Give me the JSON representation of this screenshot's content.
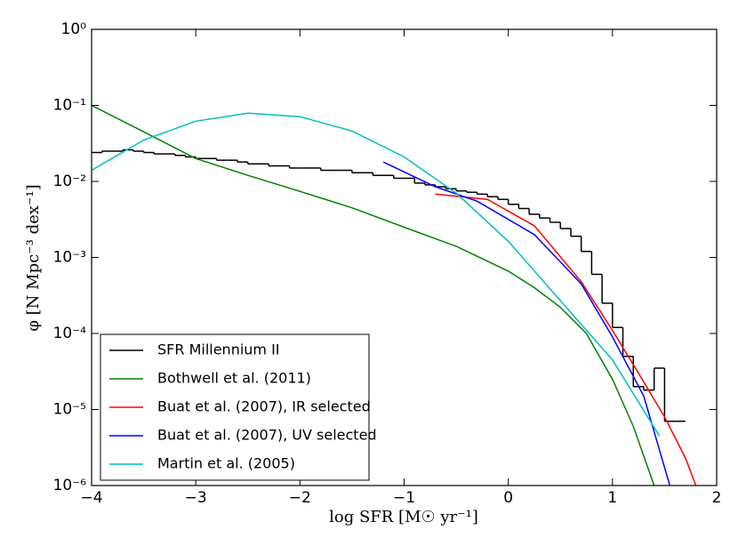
{
  "chart_data": {
    "type": "line",
    "xlabel": "log SFR [M☉ yr⁻¹]",
    "ylabel": "φ [N Mpc⁻³ dex⁻¹]",
    "xlim": [
      -4,
      2
    ],
    "xticks": [
      -4,
      -3,
      -2,
      -1,
      0,
      1,
      2
    ],
    "ylim": [
      1e-06,
      1
    ],
    "log_y": true,
    "yticks": [
      {
        "value": 1e-06,
        "label": "10⁻⁶"
      },
      {
        "value": 1e-05,
        "label": "10⁻⁵"
      },
      {
        "value": 0.0001,
        "label": "10⁻⁴"
      },
      {
        "value": 0.001,
        "label": "10⁻³"
      },
      {
        "value": 0.01,
        "label": "10⁻²"
      },
      {
        "value": 0.1,
        "label": "10⁻¹"
      },
      {
        "value": 1,
        "label": "10⁰"
      }
    ],
    "legend": "lower left",
    "series": [
      {
        "name": "SFR Millennium II",
        "color": "#000000",
        "drawstyle": "steps-mid",
        "x": [
          -3.95,
          -3.85,
          -3.75,
          -3.65,
          -3.55,
          -3.45,
          -3.35,
          -3.25,
          -3.15,
          -3.05,
          -2.95,
          -2.85,
          -2.75,
          -2.65,
          -2.55,
          -2.45,
          -2.35,
          -2.25,
          -2.15,
          -2.05,
          -1.95,
          -1.85,
          -1.75,
          -1.65,
          -1.55,
          -1.45,
          -1.35,
          -1.25,
          -1.15,
          -1.05,
          -0.95,
          -0.85,
          -0.75,
          -0.65,
          -0.55,
          -0.45,
          -0.35,
          -0.25,
          -0.15,
          -0.05,
          0.05,
          0.15,
          0.25,
          0.35,
          0.45,
          0.55,
          0.65,
          0.75,
          0.85,
          0.95,
          1.05,
          1.15,
          1.25,
          1.35,
          1.45,
          1.55,
          1.65
        ],
        "values": [
          0.024,
          0.025,
          0.025,
          0.026,
          0.025,
          0.024,
          0.023,
          0.023,
          0.022,
          0.021,
          0.02,
          0.02,
          0.019,
          0.019,
          0.018,
          0.017,
          0.017,
          0.016,
          0.016,
          0.015,
          0.015,
          0.015,
          0.014,
          0.014,
          0.014,
          0.013,
          0.013,
          0.012,
          0.012,
          0.011,
          0.011,
          0.0095,
          0.009,
          0.0085,
          0.008,
          0.0075,
          0.0072,
          0.0068,
          0.0063,
          0.0058,
          0.005,
          0.0044,
          0.0037,
          0.0033,
          0.0029,
          0.0024,
          0.0019,
          0.0012,
          0.0006,
          0.00025,
          0.00012,
          5e-05,
          2e-05,
          1.8e-05,
          3.5e-05,
          7e-06,
          7e-06
        ]
      },
      {
        "name": "Bothwell et al. (2011)",
        "color": "#008000",
        "x": [
          -4,
          -3.5,
          -3,
          -2.5,
          -2,
          -1.5,
          -1,
          -0.5,
          0,
          0.25,
          0.5,
          0.75,
          1.0,
          1.2,
          1.4
        ],
        "values": [
          0.1,
          0.045,
          0.02,
          0.012,
          0.0074,
          0.0045,
          0.0025,
          0.0014,
          0.00066,
          0.0004,
          0.00022,
          0.0001,
          2.5e-05,
          6e-06,
          1e-06
        ]
      },
      {
        "name": "Buat et al. (2007), IR selected",
        "color": "#ff0000",
        "x": [
          -0.7,
          -0.2,
          0.25,
          0.7,
          1.0,
          1.25,
          1.5,
          1.7,
          1.8
        ],
        "values": [
          0.0068,
          0.0058,
          0.0026,
          0.00048,
          0.00011,
          3e-05,
          8e-06,
          2.3e-06,
          1e-06
        ]
      },
      {
        "name": "Buat et al. (2007), UV selected",
        "color": "#0000ff",
        "x": [
          -1.2,
          -0.7,
          -0.3,
          0.25,
          0.7,
          1.0,
          1.3,
          1.55
        ],
        "values": [
          0.018,
          0.0085,
          0.0055,
          0.002,
          0.00045,
          9e-05,
          1.5e-05,
          1e-06
        ]
      },
      {
        "name": "Martin et al. (2005)",
        "color": "#00bfbf",
        "x": [
          -4,
          -3.5,
          -3,
          -2.5,
          -2,
          -1.5,
          -1,
          -0.5,
          0,
          0.5,
          1.0,
          1.45
        ],
        "values": [
          0.014,
          0.035,
          0.062,
          0.079,
          0.071,
          0.046,
          0.021,
          0.007,
          0.00163,
          0.00027,
          4.5e-05,
          4.5e-06
        ]
      }
    ]
  }
}
